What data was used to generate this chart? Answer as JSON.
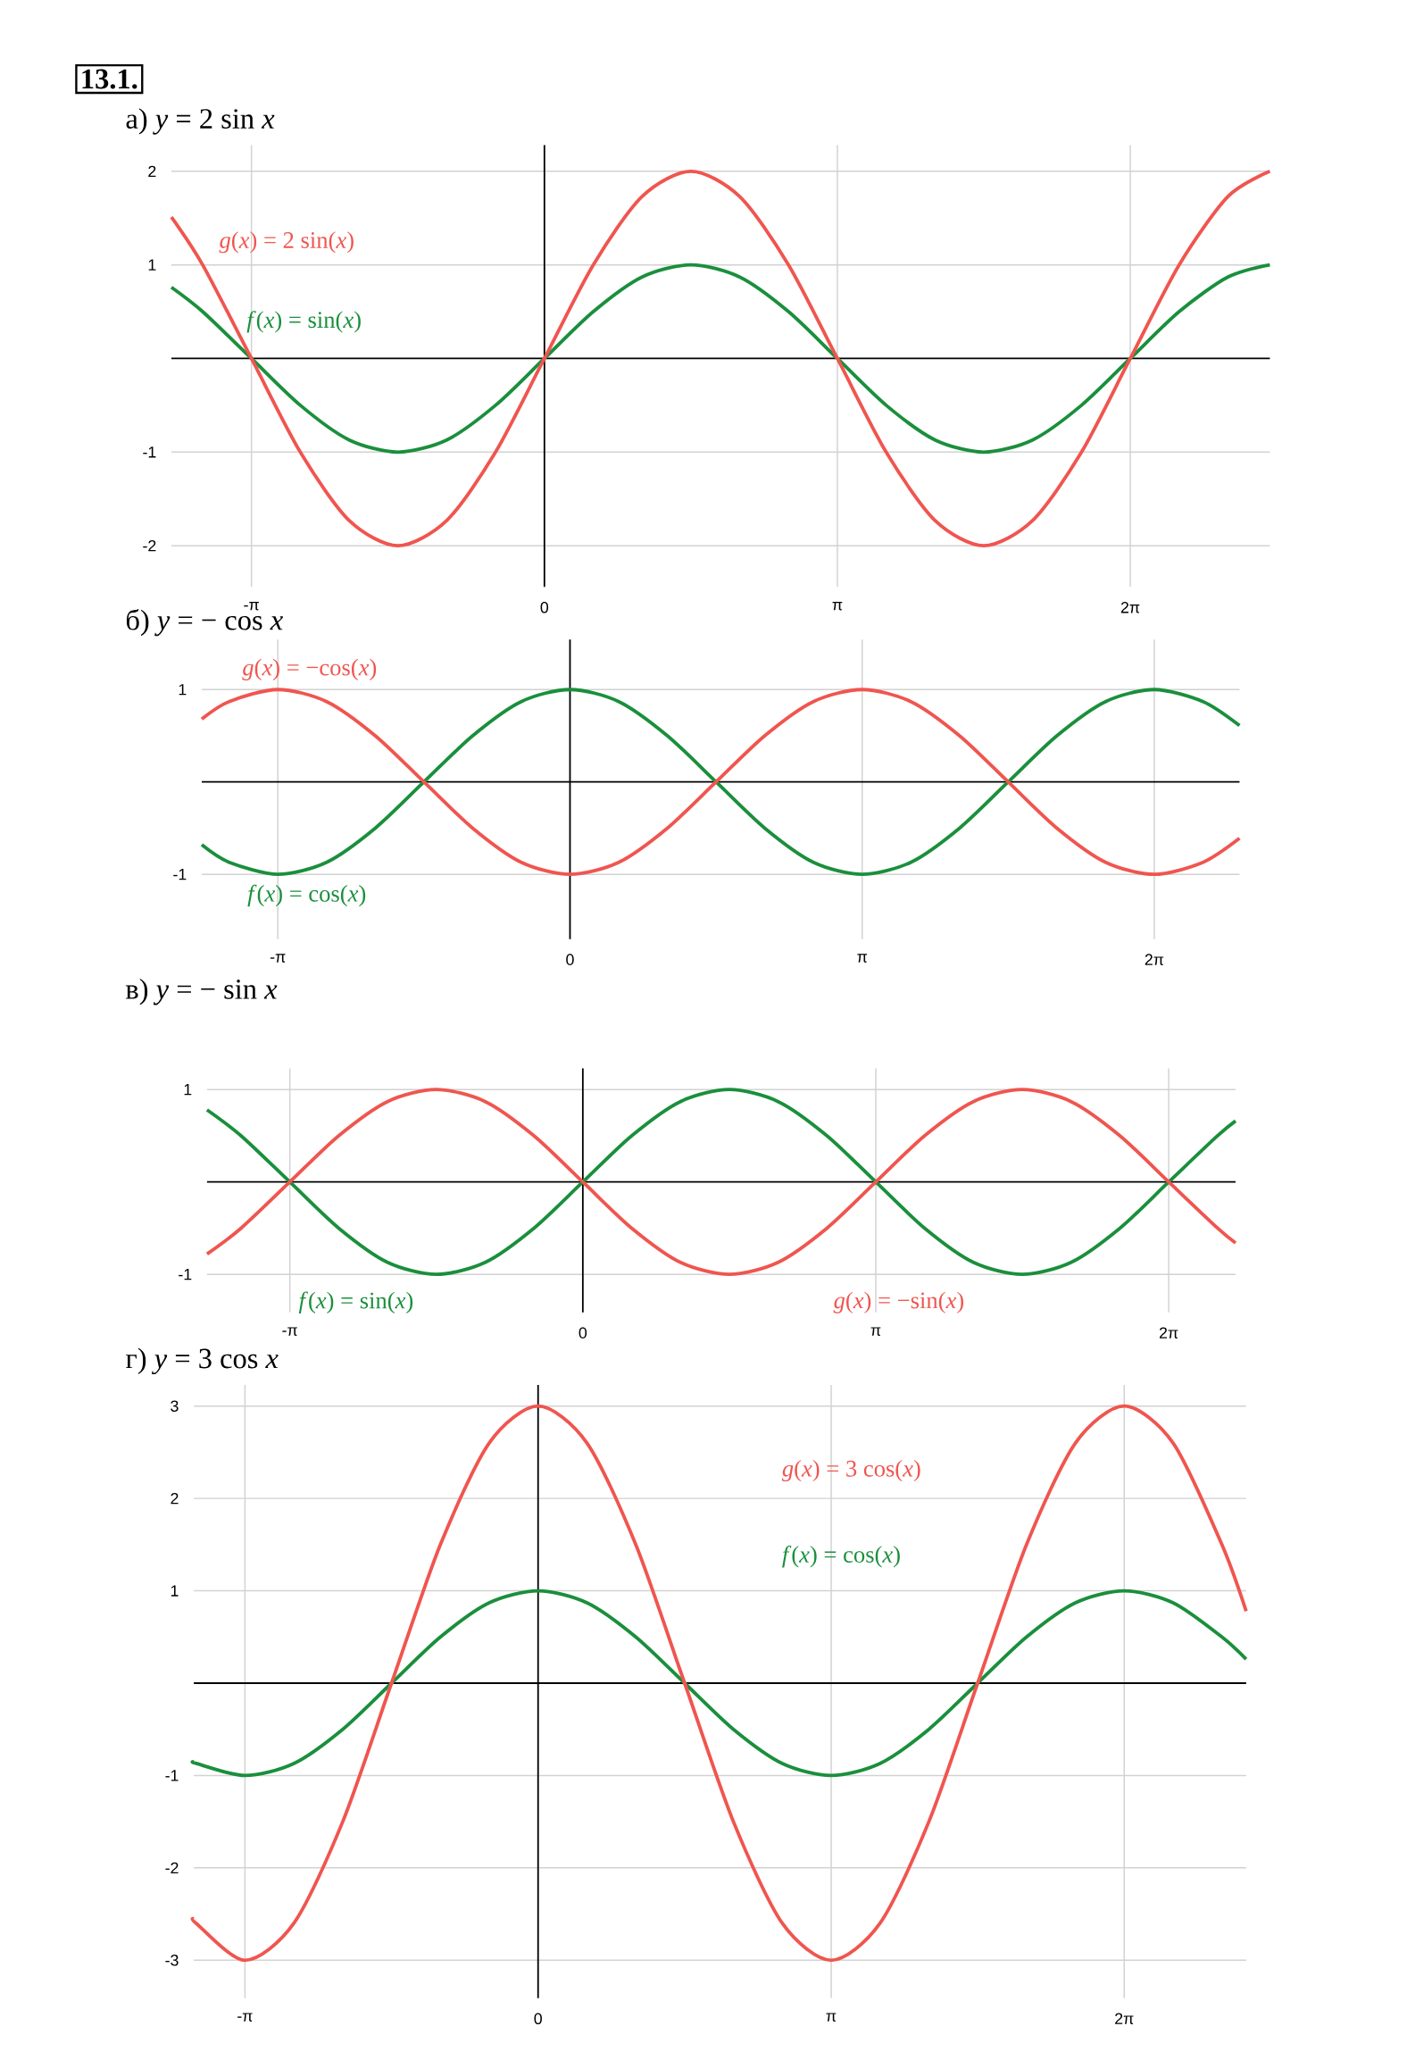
{
  "chart_data": [
    {
      "type": "line",
      "title": "а) *y* = 2 sin *x*",
      "annotations": [
        "13.1."
      ],
      "grid": true,
      "xlim": [
        -4.0,
        7.78
      ],
      "ylim": [
        -2.44,
        2.28
      ],
      "xticks": [
        {
          "value": -3.142,
          "label": "-π"
        },
        0,
        {
          "value": 3.142,
          "label": "π"
        },
        {
          "value": 6.283,
          "label": "2π"
        }
      ],
      "yticks": [
        -2,
        -1,
        1,
        2
      ],
      "x": [
        -4.0,
        -3.665,
        -3.142,
        -2.618,
        -2.094,
        -1.571,
        -1.047,
        -0.524,
        0,
        0.524,
        1.047,
        1.571,
        2.094,
        2.618,
        3.142,
        3.665,
        4.189,
        4.712,
        5.236,
        5.76,
        6.283,
        6.807,
        7.33,
        7.78
      ],
      "series": [
        {
          "name": "*f*(*x*) = sin(*x*)",
          "color": "#1a8f3c",
          "values": [
            0.76,
            0.5,
            0,
            -0.5,
            -0.87,
            -1,
            -0.87,
            -0.5,
            0,
            0.5,
            0.87,
            1,
            0.87,
            0.5,
            0,
            -0.5,
            -0.87,
            -1,
            -0.87,
            -0.5,
            0,
            0.5,
            0.87,
            1.0
          ]
        },
        {
          "name": "*g*(*x*) = 2 sin(*x*)",
          "color": "#f0554f",
          "values": [
            1.51,
            1,
            0,
            -1,
            -1.73,
            -2,
            -1.73,
            -1,
            0,
            1,
            1.73,
            2,
            1.73,
            1,
            0,
            -1,
            -1.73,
            -2,
            -1.73,
            -1,
            0,
            1,
            1.73,
            2.0
          ]
        }
      ]
    },
    {
      "type": "line",
      "title": "б) *y* = − cos *x*",
      "grid": true,
      "xlim": [
        -3.96,
        7.2
      ],
      "ylim": [
        -1.7,
        1.54
      ],
      "xticks": [
        {
          "value": -3.142,
          "label": "-π"
        },
        0,
        {
          "value": 3.142,
          "label": "π"
        },
        {
          "value": 6.283,
          "label": "2π"
        }
      ],
      "yticks": [
        -1,
        1
      ],
      "x": [
        -3.96,
        -3.665,
        -3.142,
        -2.618,
        -2.094,
        -1.571,
        -1.047,
        -0.524,
        0,
        0.524,
        1.047,
        1.571,
        2.094,
        2.618,
        3.142,
        3.665,
        4.189,
        4.712,
        5.236,
        5.76,
        6.283,
        6.807,
        7.2
      ],
      "series": [
        {
          "name": "*f*(*x*) = cos(*x*)",
          "color": "#1a8f3c",
          "values": [
            -0.68,
            -0.87,
            -1,
            -0.87,
            -0.5,
            0,
            0.5,
            0.87,
            1,
            0.87,
            0.5,
            0,
            -0.5,
            -0.87,
            -1,
            -0.87,
            -0.5,
            0,
            0.5,
            0.87,
            1,
            0.87,
            0.61
          ]
        },
        {
          "name": "*g*(*x*) = −cos(*x*)",
          "color": "#f0554f",
          "values": [
            0.68,
            0.87,
            1,
            0.87,
            0.5,
            0,
            -0.5,
            -0.87,
            -1,
            -0.87,
            -0.5,
            0,
            0.5,
            0.87,
            1,
            0.87,
            0.5,
            0,
            -0.5,
            -0.87,
            -1,
            -0.87,
            -0.61
          ]
        }
      ]
    },
    {
      "type": "line",
      "title": "в) *y* = − sin *x*",
      "grid": true,
      "xlim": [
        -4.03,
        7.0
      ],
      "ylim": [
        -1.41,
        1.23
      ],
      "xticks": [
        {
          "value": -3.142,
          "label": "-π"
        },
        0,
        {
          "value": 3.142,
          "label": "π"
        },
        {
          "value": 6.283,
          "label": "2π"
        }
      ],
      "yticks": [
        -1,
        1
      ],
      "x": [
        -4.03,
        -3.665,
        -3.142,
        -2.618,
        -2.094,
        -1.571,
        -1.047,
        -0.524,
        0,
        0.524,
        1.047,
        1.571,
        2.094,
        2.618,
        3.142,
        3.665,
        4.189,
        4.712,
        5.236,
        5.76,
        6.283,
        6.807,
        7.0
      ],
      "series": [
        {
          "name": "*f*(*x*) = sin(*x*)",
          "color": "#1a8f3c",
          "values": [
            0.78,
            0.5,
            0,
            -0.5,
            -0.87,
            -1,
            -0.87,
            -0.5,
            0,
            0.5,
            0.87,
            1,
            0.87,
            0.5,
            0,
            -0.5,
            -0.87,
            -1,
            -0.87,
            -0.5,
            0,
            0.5,
            0.66
          ]
        },
        {
          "name": "*g*(*x*) = −sin(*x*)",
          "color": "#f0554f",
          "values": [
            -0.78,
            -0.5,
            0,
            0.5,
            0.87,
            1,
            0.87,
            0.5,
            0,
            -0.5,
            -0.87,
            -1,
            -0.87,
            -0.5,
            0,
            0.5,
            0.87,
            1,
            0.87,
            0.5,
            0,
            -0.5,
            -0.66
          ]
        }
      ]
    },
    {
      "type": "line",
      "title": "г) *y* = 3 cos *x*",
      "grid": true,
      "xlim": [
        -3.69,
        7.59
      ],
      "ylim": [
        -3.41,
        3.23
      ],
      "xticks": [
        {
          "value": -3.142,
          "label": "-π"
        },
        0,
        {
          "value": 3.142,
          "label": "π"
        },
        {
          "value": 6.283,
          "label": "2π"
        }
      ],
      "yticks": [
        -3,
        -2,
        -1,
        1,
        2,
        3
      ],
      "x": [
        -3.69,
        -3.665,
        -3.142,
        -2.618,
        -2.094,
        -1.571,
        -1.047,
        -0.524,
        0,
        0.524,
        1.047,
        1.571,
        2.094,
        2.618,
        3.142,
        3.665,
        4.189,
        4.712,
        5.236,
        5.76,
        6.283,
        6.807,
        7.33,
        7.59
      ],
      "series": [
        {
          "name": "*f*(*x*) = cos(*x*)",
          "color": "#1a8f3c",
          "values": [
            -0.85,
            -0.87,
            -1,
            -0.87,
            -0.5,
            0,
            0.5,
            0.87,
            1,
            0.87,
            0.5,
            0,
            -0.5,
            -0.87,
            -1,
            -0.87,
            -0.5,
            0,
            0.5,
            0.87,
            1,
            0.87,
            0.5,
            0.26
          ]
        },
        {
          "name": "*g*(*x*) = 3 cos(*x*)",
          "color": "#f0554f",
          "values": [
            -2.55,
            -2.6,
            -3,
            -2.6,
            -1.5,
            0,
            1.5,
            2.6,
            3,
            2.6,
            1.5,
            0,
            -1.5,
            -2.6,
            -3,
            -2.6,
            -1.5,
            0,
            1.5,
            2.6,
            3,
            2.6,
            1.5,
            0.78
          ]
        }
      ]
    }
  ]
}
